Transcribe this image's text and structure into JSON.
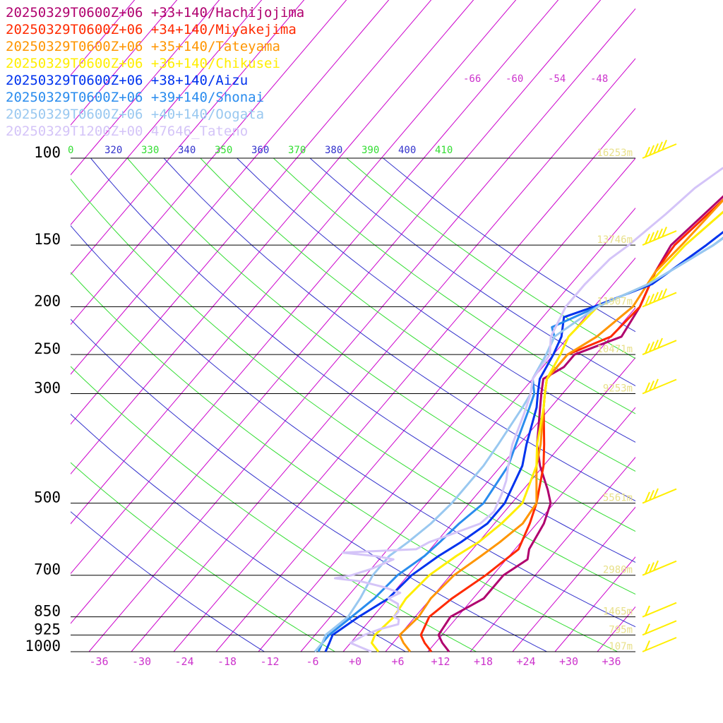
{
  "chart_data": {
    "type": "line",
    "xlabel": "",
    "ylabel": "",
    "pressure_levels": [
      {
        "p": 100,
        "label": "100",
        "height": "16253m"
      },
      {
        "p": 150,
        "label": "150",
        "height": "13746m"
      },
      {
        "p": 200,
        "label": "200",
        "height": "11907m"
      },
      {
        "p": 250,
        "label": "250",
        "height": "10471m"
      },
      {
        "p": 300,
        "label": "300",
        "height": "9253m"
      },
      {
        "p": 500,
        "label": "500",
        "height": "5561m"
      },
      {
        "p": 700,
        "label": "700",
        "height": "2980m"
      },
      {
        "p": 850,
        "label": "850",
        "height": "1465m"
      },
      {
        "p": 925,
        "label": "925",
        "height": "795m"
      },
      {
        "p": 1000,
        "label": "1000",
        "height": "107m"
      }
    ],
    "x_ticks": [
      "-36",
      "-30",
      "-24",
      "-18",
      "-12",
      "-6",
      "+0",
      "+6",
      "+12",
      "+18",
      "+24",
      "+30",
      "+36"
    ],
    "theta_labels": [
      {
        "label": "0",
        "color": "#33dd33"
      },
      {
        "label": "320",
        "color": "#3333cc"
      },
      {
        "label": "330",
        "color": "#33dd33"
      },
      {
        "label": "340",
        "color": "#3333cc"
      },
      {
        "label": "350",
        "color": "#33dd33"
      },
      {
        "label": "360",
        "color": "#3333cc"
      },
      {
        "label": "370",
        "color": "#33dd33"
      },
      {
        "label": "380",
        "color": "#3333cc"
      },
      {
        "label": "390",
        "color": "#33dd33"
      },
      {
        "label": "400",
        "color": "#3333cc"
      },
      {
        "label": "410",
        "color": "#33dd33"
      }
    ],
    "top_temp_labels": [
      "-66",
      "-60",
      "-54",
      "-48"
    ],
    "series": [
      {
        "name": "20250329T0600Z+06 +33+140/Hachijojima",
        "color": "#b0006e",
        "temperature": [
          [
            1000,
            13
          ],
          [
            960,
            11
          ],
          [
            925,
            9.5
          ],
          [
            850,
            9
          ],
          [
            780,
            11.5
          ],
          [
            700,
            11.5
          ],
          [
            650,
            13
          ],
          [
            620,
            12
          ],
          [
            550,
            11
          ],
          [
            500,
            9.5
          ],
          [
            470,
            7.5
          ],
          [
            420,
            3.5
          ],
          [
            380,
            0.5
          ],
          [
            320,
            -3.5
          ],
          [
            300,
            -5
          ],
          [
            280,
            -6.5
          ],
          [
            265,
            -5
          ],
          [
            250,
            -5
          ],
          [
            230,
            -0.5
          ],
          [
            200,
            -1.5
          ],
          [
            170,
            -3.5
          ],
          [
            150,
            -4.5
          ],
          [
            120,
            -3
          ],
          [
            100,
            -1.5
          ],
          [
            80,
            -2
          ],
          [
            70,
            2
          ],
          [
            50,
            22
          ],
          [
            45,
            26
          ],
          [
            40,
            30
          ]
        ]
      },
      {
        "name": "20250329T0600Z+06 +34+140/Miyakejima",
        "color": "#ff2a00",
        "temperature": [
          [
            1000,
            10.5
          ],
          [
            960,
            8.5
          ],
          [
            925,
            7
          ],
          [
            850,
            6
          ],
          [
            780,
            7
          ],
          [
            700,
            9
          ],
          [
            620,
            10.5
          ],
          [
            550,
            9
          ],
          [
            500,
            7.5
          ],
          [
            420,
            4
          ],
          [
            380,
            1.5
          ],
          [
            320,
            -3
          ],
          [
            300,
            -4.5
          ],
          [
            280,
            -6
          ],
          [
            250,
            -6
          ],
          [
            230,
            -2
          ],
          [
            200,
            -1.5
          ],
          [
            170,
            -3.5
          ],
          [
            150,
            -4
          ],
          [
            120,
            -2.5
          ],
          [
            100,
            1
          ],
          [
            80,
            1
          ],
          [
            70,
            4
          ],
          [
            50,
            22
          ],
          [
            45,
            28
          ],
          [
            40,
            32
          ]
        ]
      },
      {
        "name": "20250329T0600Z+06 +35+140/Tateyama",
        "color": "#ff9500",
        "temperature": [
          [
            1000,
            7.5
          ],
          [
            960,
            5.5
          ],
          [
            925,
            4
          ],
          [
            850,
            4.5
          ],
          [
            780,
            4
          ],
          [
            700,
            4.5
          ],
          [
            640,
            6
          ],
          [
            600,
            7
          ],
          [
            550,
            8
          ],
          [
            500,
            7.5
          ],
          [
            420,
            3
          ],
          [
            380,
            1
          ],
          [
            320,
            -3
          ],
          [
            300,
            -4.5
          ],
          [
            280,
            -6
          ],
          [
            250,
            -6
          ],
          [
            230,
            -4
          ],
          [
            200,
            -2.5
          ],
          [
            170,
            -3.5
          ],
          [
            150,
            -3
          ],
          [
            120,
            -2.5
          ],
          [
            100,
            3
          ],
          [
            80,
            2.5
          ],
          [
            70,
            7
          ],
          [
            50,
            23
          ],
          [
            45,
            30
          ],
          [
            40,
            34
          ]
        ]
      },
      {
        "name": "20250329T0600Z+06 +36+140/Chikusei",
        "color": "#ffee00",
        "temperature": [
          [
            1000,
            3
          ],
          [
            960,
            1
          ],
          [
            925,
            0.5
          ],
          [
            850,
            1
          ],
          [
            780,
            0.5
          ],
          [
            700,
            1
          ],
          [
            640,
            2.5
          ],
          [
            600,
            4
          ],
          [
            550,
            5
          ],
          [
            500,
            5.5
          ],
          [
            420,
            3
          ],
          [
            380,
            0.5
          ],
          [
            320,
            -3
          ],
          [
            300,
            -4.5
          ],
          [
            280,
            -6
          ],
          [
            250,
            -7
          ],
          [
            230,
            -8
          ],
          [
            200,
            -7.5
          ],
          [
            180,
            -3
          ],
          [
            150,
            -2.5
          ],
          [
            120,
            -0.5
          ],
          [
            100,
            4
          ],
          [
            80,
            4
          ],
          [
            70,
            9
          ],
          [
            50,
            25
          ],
          [
            45,
            32
          ],
          [
            40,
            36
          ]
        ]
      },
      {
        "name": "20250329T0600Z+06 +38+140/Aizu",
        "color": "#0033ee",
        "temperature": [
          [
            1000,
            -4.5
          ],
          [
            960,
            -5
          ],
          [
            925,
            -5.5
          ],
          [
            850,
            -4
          ],
          [
            780,
            -2
          ],
          [
            700,
            -1.5
          ],
          [
            640,
            0
          ],
          [
            600,
            1.5
          ],
          [
            550,
            3
          ],
          [
            500,
            3
          ],
          [
            420,
            1
          ],
          [
            380,
            -1
          ],
          [
            320,
            -4
          ],
          [
            300,
            -5.5
          ],
          [
            280,
            -7
          ],
          [
            250,
            -8
          ],
          [
            230,
            -9
          ],
          [
            210,
            -11
          ],
          [
            200,
            -8
          ],
          [
            180,
            -2.5
          ],
          [
            150,
            0.5
          ],
          [
            120,
            3.5
          ],
          [
            100,
            7.5
          ],
          [
            80,
            7.5
          ],
          [
            70,
            11
          ],
          [
            50,
            26
          ],
          [
            45,
            34
          ],
          [
            40,
            39
          ]
        ]
      },
      {
        "name": "20250329T0600Z+06 +39+140/Shonai",
        "color": "#2a8cee",
        "temperature": [
          [
            1000,
            -5.5
          ],
          [
            960,
            -6
          ],
          [
            925,
            -6
          ],
          [
            850,
            -5
          ],
          [
            780,
            -4
          ],
          [
            700,
            -3.5
          ],
          [
            640,
            -2
          ],
          [
            600,
            -1.5
          ],
          [
            550,
            -1
          ],
          [
            500,
            0
          ],
          [
            420,
            -1
          ],
          [
            380,
            -2.5
          ],
          [
            320,
            -5
          ],
          [
            300,
            -6
          ],
          [
            280,
            -8
          ],
          [
            250,
            -9
          ],
          [
            230,
            -10
          ],
          [
            220,
            -11.5
          ],
          [
            200,
            -7.5
          ],
          [
            180,
            -3
          ],
          [
            150,
            1.5
          ],
          [
            120,
            5
          ],
          [
            100,
            9.5
          ],
          [
            80,
            9.5
          ],
          [
            70,
            13
          ],
          [
            50,
            28
          ],
          [
            45,
            36
          ],
          [
            40,
            41
          ]
        ]
      },
      {
        "name": "20250329T0600Z+06 +40+140/Oogata",
        "color": "#99c8f0",
        "temperature": [
          [
            1000,
            -6
          ],
          [
            960,
            -6
          ],
          [
            925,
            -6.5
          ],
          [
            850,
            -5.5
          ],
          [
            780,
            -6
          ],
          [
            700,
            -7
          ],
          [
            640,
            -7
          ],
          [
            600,
            -6
          ],
          [
            550,
            -5
          ],
          [
            500,
            -4.5
          ],
          [
            420,
            -4.5
          ],
          [
            380,
            -5
          ],
          [
            320,
            -6
          ],
          [
            300,
            -6.5
          ],
          [
            280,
            -8
          ],
          [
            250,
            -9
          ],
          [
            230,
            -10
          ],
          [
            200,
            -7.5
          ],
          [
            180,
            -3
          ],
          [
            150,
            1.5
          ],
          [
            120,
            5.5
          ],
          [
            100,
            10.5
          ],
          [
            80,
            9.5
          ],
          [
            70,
            12
          ],
          [
            50,
            28
          ],
          [
            45,
            37
          ],
          [
            40,
            43
          ]
        ]
      },
      {
        "name": "20250329T1200Z+00 47646_Tateno",
        "color": "#d4c4f8",
        "temperature": [
          [
            1000,
            2
          ],
          [
            985,
            0.5
          ],
          [
            960,
            -2
          ],
          [
            925,
            -1
          ],
          [
            900,
            0.5
          ],
          [
            880,
            2.5
          ],
          [
            860,
            2
          ],
          [
            850,
            1
          ],
          [
            830,
            1
          ],
          [
            800,
            0
          ],
          [
            790,
            -1
          ],
          [
            780,
            -2
          ],
          [
            760,
            -1
          ],
          [
            740,
            -4
          ],
          [
            720,
            -8
          ],
          [
            710,
            -12
          ],
          [
            700,
            -10
          ],
          [
            680,
            -8
          ],
          [
            650,
            -6
          ],
          [
            640,
            -9
          ],
          [
            630,
            -14
          ],
          [
            620,
            -4
          ],
          [
            600,
            -3
          ],
          [
            580,
            -1
          ],
          [
            550,
            2
          ],
          [
            520,
            2.5
          ],
          [
            500,
            2
          ],
          [
            480,
            1.5
          ],
          [
            450,
            0.5
          ],
          [
            420,
            -1
          ],
          [
            380,
            -3
          ],
          [
            330,
            -5
          ],
          [
            300,
            -6.5
          ],
          [
            280,
            -8
          ],
          [
            250,
            -8.5
          ],
          [
            230,
            -10.5
          ],
          [
            200,
            -12
          ],
          [
            180,
            -12
          ],
          [
            160,
            -11.5
          ],
          [
            150,
            -10.5
          ],
          [
            130,
            -9
          ],
          [
            115,
            -8
          ],
          [
            105,
            -6.5
          ],
          [
            100,
            -4.5
          ]
        ]
      }
    ],
    "wind_barbs": [
      {
        "p": 1000,
        "color": "#ffee00",
        "barbs": 1,
        "pennants": 0
      },
      {
        "p": 925,
        "color": "#ffee00",
        "barbs": 1,
        "pennants": 0
      },
      {
        "p": 850,
        "color": "#ffee00",
        "barbs": 1,
        "pennants": 0
      },
      {
        "p": 700,
        "color": "#ffee00",
        "barbs": 3,
        "pennants": 0
      },
      {
        "p": 500,
        "color": "#ffee00",
        "barbs": 3,
        "pennants": 0
      },
      {
        "p": 300,
        "color": "#ffee00",
        "barbs": 3,
        "pennants": 0
      },
      {
        "p": 250,
        "color": "#ffee00",
        "barbs": 4,
        "pennants": 0
      },
      {
        "p": 200,
        "color": "#ffee00",
        "barbs": 5,
        "pennants": 0
      },
      {
        "p": 150,
        "color": "#ffee00",
        "barbs": 5,
        "pennants": 0
      },
      {
        "p": 100,
        "color": "#ffee00",
        "barbs": 5,
        "pennants": 0
      }
    ],
    "colors": {
      "isotherm": "#cc00cc",
      "dry_adiabat_blue": "#3333cc",
      "dry_adiabat_green": "#33dd33",
      "isobar": "#000000",
      "height_label": "#e8e08a",
      "tick_label": "#cc33cc"
    }
  }
}
